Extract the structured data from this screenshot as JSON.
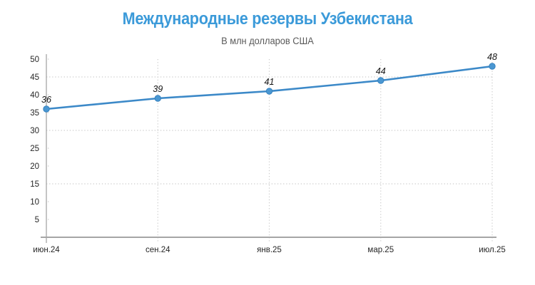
{
  "header": {
    "title": "Международные резервы Узбекистана",
    "subtitle": "В млн долларов США"
  },
  "colors": {
    "title": "#3b9ad9",
    "subtitle": "#595959",
    "line": "#3c89c8",
    "marker": "#4a97d2",
    "marker_stroke": "#3682bf",
    "axis": "#a6a6a6",
    "grid": "#cccccc",
    "tick_label": "#262626",
    "data_label": "#141414",
    "background": "#ffffff"
  },
  "chart_data": {
    "type": "line",
    "title": "Международные резервы Узбекистана",
    "subtitle": "В млн долларов США",
    "categories": [
      "июн.24",
      "сен.24",
      "янв.25",
      "мар.25",
      "июл.25"
    ],
    "values": [
      36,
      39,
      41,
      44,
      48
    ],
    "xlabel": "",
    "ylabel": "",
    "ylim": [
      0,
      50
    ],
    "ytick_step": 5,
    "major_gridlines": [
      15,
      30,
      45
    ],
    "grid_style": "dotted",
    "legend": "none",
    "data_labels": true,
    "data_label_style": "italic"
  }
}
